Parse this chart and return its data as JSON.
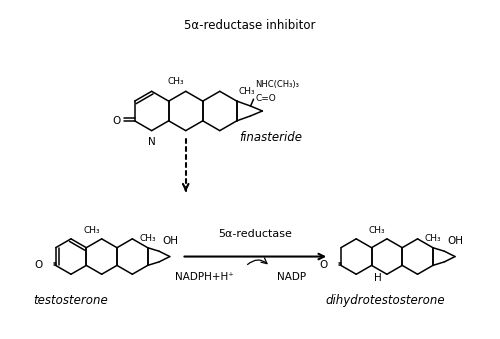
{
  "bg_color": "#ffffff",
  "text_color": "#000000",
  "fig_width": 5.0,
  "fig_height": 3.39,
  "dpi": 100,
  "top_label": "5α-reductase inhibitor",
  "finasteride_label": "finasteride",
  "testosterone_label": "testosterone",
  "dht_label": "dihydrotestosterone",
  "enzyme_label": "5α-reductase",
  "nadph_label": "NADPH+H⁺",
  "nadp_label": "NADP"
}
